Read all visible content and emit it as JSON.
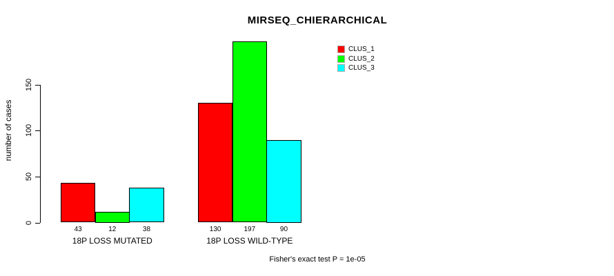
{
  "title": "MIRSEQ_CHIERARCHICAL",
  "footer": "Fisher's exact test P = 1e-05",
  "legend": {
    "items": [
      {
        "label": "CLUS_1",
        "color": "#ff0000"
      },
      {
        "label": "CLUS_2",
        "color": "#00ff00"
      },
      {
        "label": "CLUS_3",
        "color": "#00ffff"
      }
    ]
  },
  "chart_data": {
    "type": "bar",
    "title": "MIRSEQ_CHIERARCHICAL",
    "categories": [
      "18P LOSS MUTATED",
      "18P LOSS WILD-TYPE"
    ],
    "series": [
      {
        "name": "CLUS_1",
        "color": "#ff0000",
        "values": [
          43,
          130
        ]
      },
      {
        "name": "CLUS_2",
        "color": "#00ff00",
        "values": [
          12,
          197
        ]
      },
      {
        "name": "CLUS_3",
        "color": "#00ffff",
        "values": [
          38,
          90
        ]
      }
    ],
    "bar_value_labels": [
      [
        43,
        12,
        38
      ],
      [
        130,
        197,
        90
      ]
    ],
    "xlabel": "",
    "ylabel": "number of cases",
    "y_ticks": [
      0,
      50,
      100,
      150
    ],
    "ylim": [
      0,
      200
    ],
    "grid": false,
    "bar_border_color": "#000000",
    "legend_position": "top-right",
    "legend_entries": [
      "CLUS_1",
      "CLUS_2",
      "CLUS_3"
    ],
    "annotation": "Fisher's exact test P = 1e-05"
  }
}
